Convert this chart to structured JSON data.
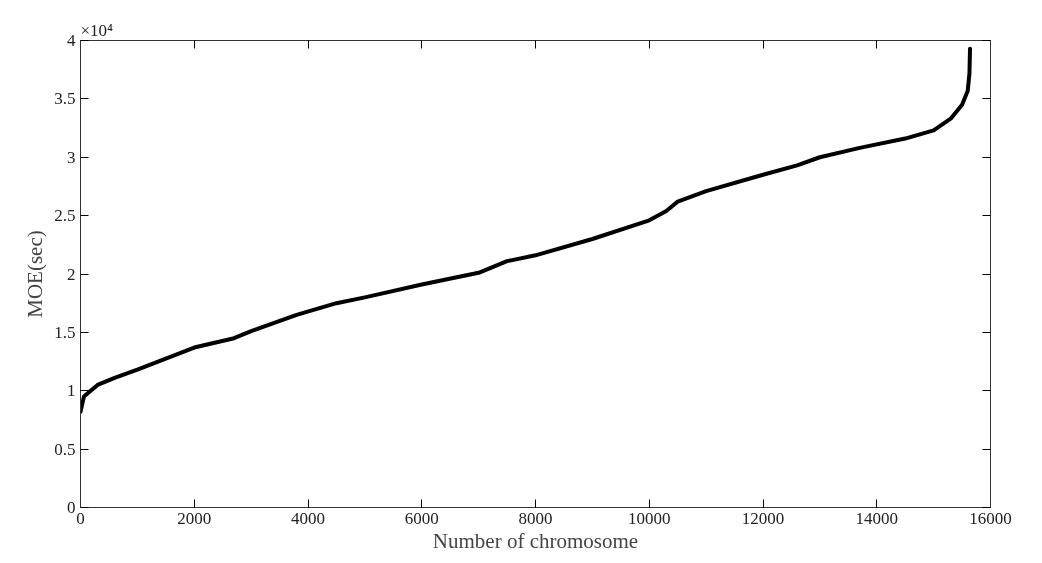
{
  "chart_data": {
    "type": "line",
    "xlabel": "Number of chromosome",
    "ylabel": "MOE(sec)",
    "annotations": [
      "×10⁴"
    ],
    "x": [
      0,
      60,
      300,
      600,
      1000,
      2000,
      2700,
      3000,
      3800,
      4500,
      5000,
      6000,
      7000,
      7500,
      8000,
      9000,
      10000,
      10300,
      10500,
      11000,
      12000,
      12600,
      13000,
      13700,
      14500,
      15000,
      15300,
      15500,
      15600,
      15630,
      15640
    ],
    "series": [
      {
        "color": "#000000",
        "values": [
          0.82,
          0.95,
          1.05,
          1.11,
          1.18,
          1.37,
          1.45,
          1.51,
          1.65,
          1.75,
          1.8,
          1.91,
          2.01,
          2.11,
          2.16,
          2.3,
          2.46,
          2.54,
          2.62,
          2.71,
          2.85,
          2.93,
          3.0,
          3.08,
          3.16,
          3.23,
          3.33,
          3.45,
          3.57,
          3.72,
          3.93
        ]
      }
    ],
    "xlim": [
      0,
      16000
    ],
    "xticks": [
      0,
      2000,
      4000,
      6000,
      8000,
      10000,
      12000,
      14000,
      16000
    ],
    "ylim": [
      0,
      4
    ],
    "yticks": [
      0,
      0.5,
      1,
      1.5,
      2,
      2.5,
      3,
      3.5,
      4
    ],
    "grid": false,
    "marker": "none",
    "line_style": "solid"
  }
}
